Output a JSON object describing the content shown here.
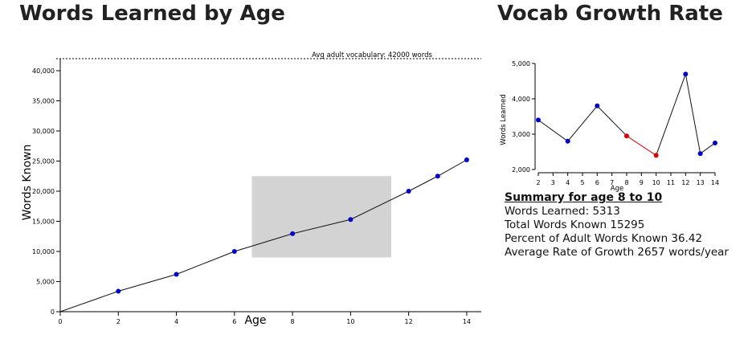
{
  "main_title": "Words Learned by Age",
  "side_title": "Vocab Growth Rate",
  "summary": {
    "heading": "Summary for age 8 to 10",
    "words_learned": "Words Learned: 5313",
    "total_words": "Total Words Known 15295",
    "percent_adult": "Percent of Adult Words Known 36.42",
    "avg_rate": "Average Rate of Growth 2657 words/year"
  },
  "colors": {
    "point": "#0000cc",
    "highlight": "#dd0000",
    "line": "#111111",
    "brush": "#d3d3d3"
  },
  "chart_data": [
    {
      "type": "line",
      "title": "Words Learned by Age",
      "xlabel": "Age",
      "ylabel": "Words Known",
      "x": [
        0,
        2,
        4,
        6,
        8,
        10,
        12,
        13,
        14
      ],
      "y": [
        0,
        3400,
        6200,
        10000,
        12950,
        15300,
        20000,
        22500,
        25200
      ],
      "xlim": [
        0,
        14.5
      ],
      "ylim": [
        0,
        42000
      ],
      "x_ticks": [
        0,
        2,
        4,
        6,
        8,
        10,
        12,
        14
      ],
      "y_ticks": [
        0,
        5000,
        10000,
        15000,
        20000,
        25000,
        30000,
        35000,
        40000
      ],
      "reference_line": {
        "value": 42000,
        "label": "Avg adult vocabulary: 42000 words"
      },
      "brush_selection": {
        "x_range": [
          6.6,
          11.4
        ],
        "y_range": [
          9000,
          22500
        ]
      }
    },
    {
      "type": "line",
      "title": "Vocab Growth Rate",
      "xlabel": "Age",
      "ylabel": "Words Learned",
      "x": [
        2,
        4,
        6,
        8,
        10,
        12,
        13,
        14
      ],
      "y": [
        3400,
        2800,
        3800,
        2950,
        2400,
        4700,
        2450,
        2750
      ],
      "highlighted_x": [
        8,
        10
      ],
      "xlim": [
        2,
        14
      ],
      "ylim": [
        2000,
        5000
      ],
      "x_ticks": [
        2,
        3,
        4,
        5,
        6,
        7,
        8,
        9,
        10,
        11,
        12,
        13,
        14
      ],
      "y_ticks": [
        2000,
        3000,
        4000,
        5000
      ]
    }
  ]
}
